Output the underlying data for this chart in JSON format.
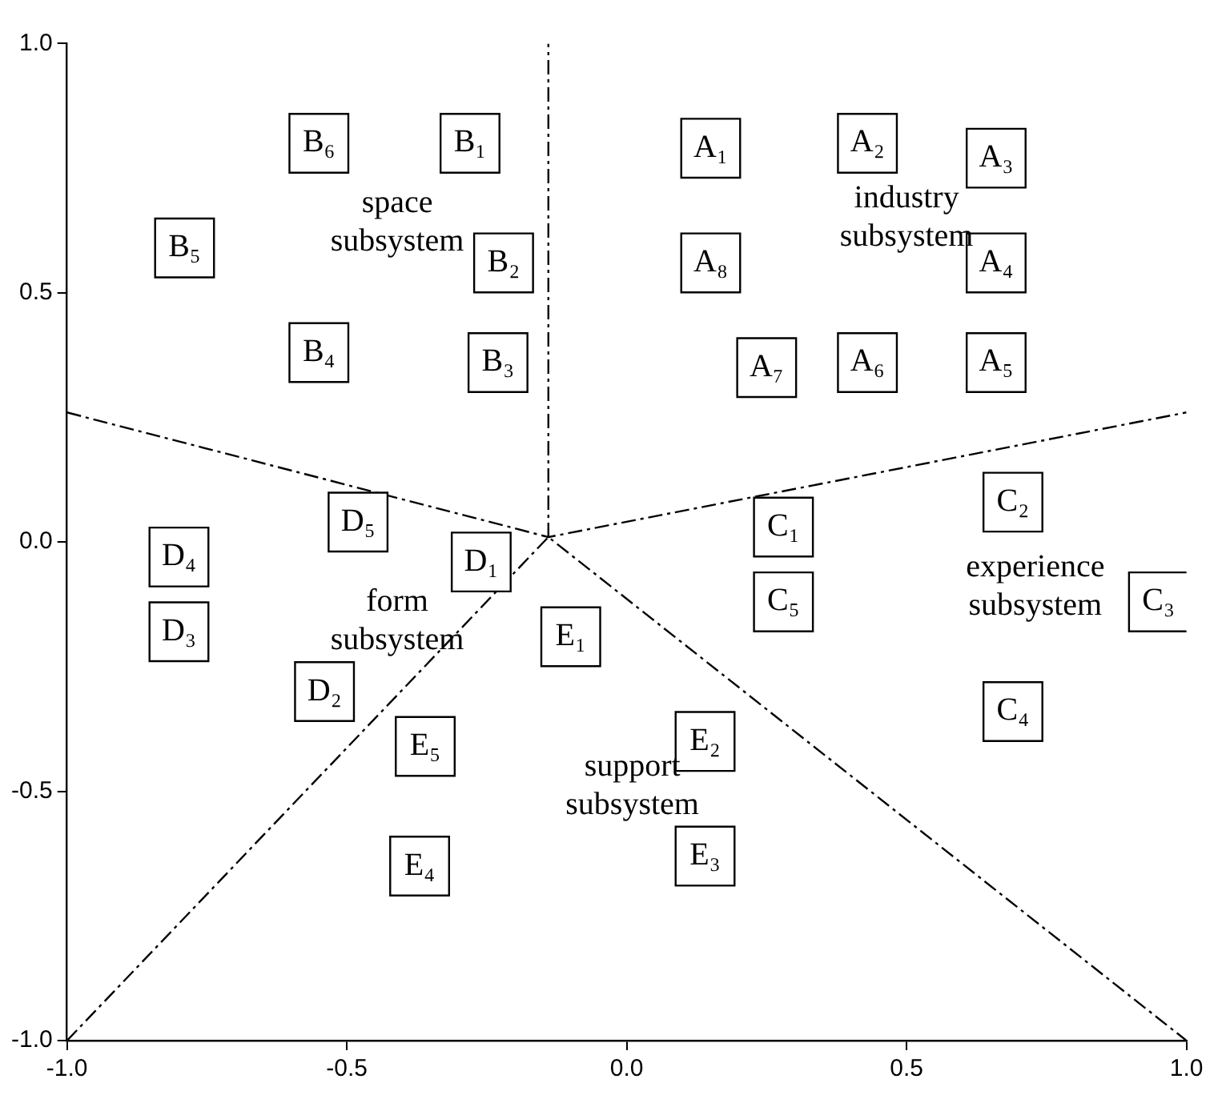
{
  "chart_data": {
    "type": "scatter",
    "marker": "square",
    "line_style": "dashed",
    "grid": false,
    "legend": false,
    "xlim": [
      -1,
      1
    ],
    "ylim": [
      -1,
      1
    ],
    "xticks": [
      {
        "value": -1,
        "label": "-1.0"
      },
      {
        "value": -0.5,
        "label": "-0.5"
      },
      {
        "value": 0,
        "label": "0.0"
      },
      {
        "value": 0.5,
        "label": "0.5"
      },
      {
        "value": 1,
        "label": "1.0"
      }
    ],
    "yticks": [
      {
        "value": -1,
        "label": "-1.0"
      },
      {
        "value": -0.5,
        "label": "-0.5"
      },
      {
        "value": 0,
        "label": "0.0"
      },
      {
        "value": 0.5,
        "label": "0.5"
      },
      {
        "value": 1,
        "label": "1.0"
      }
    ],
    "series": [
      {
        "color": "#000000",
        "x": [
          0.15,
          0.43,
          0.66,
          0.66,
          0.66,
          0.43,
          0.25,
          0.15
        ],
        "values": [
          0.79,
          0.8,
          0.77,
          0.56,
          0.36,
          0.36,
          0.35,
          0.56
        ],
        "value_labels": [
          "A₁",
          "A₂",
          "A₃",
          "A₄",
          "A₅",
          "A₆",
          "A₇",
          "A₈"
        ]
      },
      {
        "color": "#000000",
        "x": [
          -0.28,
          -0.22,
          -0.23,
          -0.55,
          -0.79,
          -0.55
        ],
        "values": [
          0.8,
          0.56,
          0.36,
          0.38,
          0.59,
          0.8
        ],
        "value_labels": [
          "B₁",
          "B₂",
          "B₃",
          "B₄",
          "B₅",
          "B₆"
        ]
      },
      {
        "color": "#000000",
        "x": [
          0.28,
          0.69,
          0.95,
          0.69,
          0.28
        ],
        "values": [
          0.03,
          0.08,
          -0.12,
          -0.34,
          -0.12
        ],
        "value_labels": [
          "C₁",
          "C₂",
          "C₃",
          "C₄",
          "C₅"
        ]
      },
      {
        "color": "#000000",
        "x": [
          -0.26,
          -0.54,
          -0.8,
          -0.8,
          -0.48
        ],
        "values": [
          -0.04,
          -0.3,
          -0.18,
          -0.03,
          0.04
        ],
        "value_labels": [
          "D₁",
          "D₂",
          "D₃",
          "D₄",
          "D₅"
        ]
      },
      {
        "color": "#000000",
        "x": [
          -0.1,
          0.14,
          0.14,
          -0.37,
          -0.36
        ],
        "values": [
          -0.19,
          -0.4,
          -0.63,
          -0.65,
          -0.41
        ],
        "value_labels": [
          "E₁",
          "E₂",
          "E₃",
          "E₄",
          "E₅"
        ]
      },
      {
        "type": "line",
        "marker": "none",
        "color": "#000000",
        "x": [
          -0.14,
          -0.14
        ],
        "values": [
          0.01,
          1
        ]
      },
      {
        "type": "line",
        "marker": "none",
        "color": "#000000",
        "x": [
          -1,
          -0.14,
          1
        ],
        "values": [
          0.26,
          0.01,
          0.26
        ]
      },
      {
        "type": "line",
        "marker": "none",
        "color": "#000000",
        "x": [
          -1,
          -0.14,
          1
        ],
        "values": [
          -1,
          0.01,
          -1
        ]
      }
    ],
    "annotations": [
      "industry\nsubsystem",
      "space\nsubsystem",
      "experience\nsubsystem",
      "form\nsubsystem",
      "support\nsubsystem"
    ]
  }
}
